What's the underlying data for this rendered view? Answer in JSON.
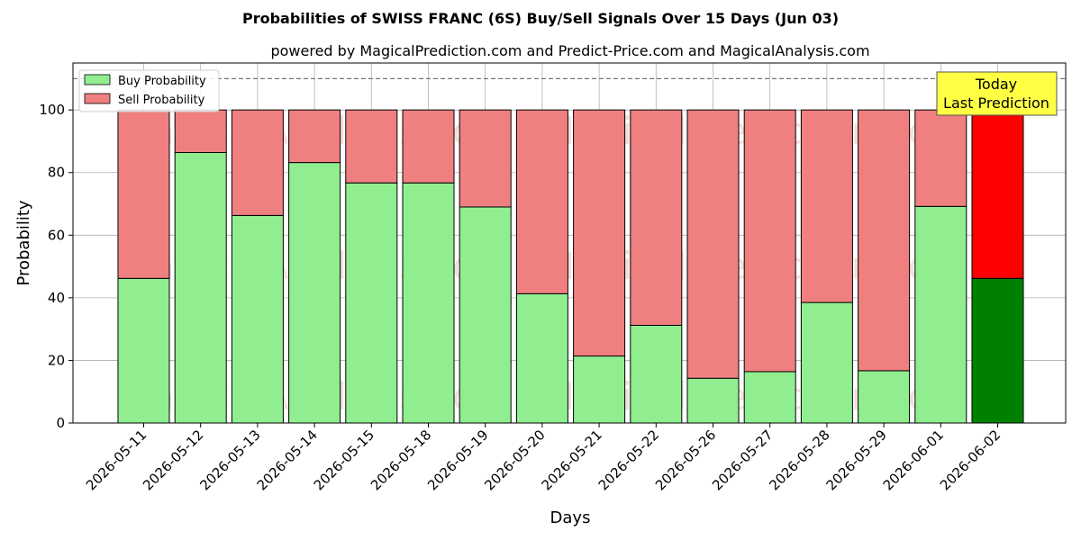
{
  "chart_data": {
    "type": "bar",
    "title": "Probabilities of SWISS FRANC (6S) Buy/Sell Signals Over 15 Days (Jun 03)",
    "subtitle": "powered by MagicalPrediction.com and Predict-Price.com and MagicalAnalysis.com",
    "xlabel": "Days",
    "ylabel": "Probability",
    "ylim": [
      0,
      115
    ],
    "yticks": [
      0,
      20,
      40,
      60,
      80,
      100
    ],
    "reference_line": 110,
    "grid": true,
    "legend_position": "top-left",
    "stacked": true,
    "categories": [
      "2026-05-11",
      "2026-05-12",
      "2026-05-13",
      "2026-05-14",
      "2026-05-15",
      "2026-05-18",
      "2026-05-19",
      "2026-05-20",
      "2026-05-21",
      "2026-05-22",
      "2026-05-26",
      "2026-05-27",
      "2026-05-28",
      "2026-05-29",
      "2026-06-01",
      "2026-06-02"
    ],
    "series": [
      {
        "name": "Buy Probability",
        "color": "#90ee90",
        "highlight_color": "#008000",
        "values": [
          46.2,
          86.4,
          66.3,
          83.2,
          76.7,
          76.7,
          69.0,
          41.3,
          21.4,
          31.2,
          14.3,
          16.4,
          38.5,
          16.7,
          69.2,
          46.2
        ]
      },
      {
        "name": "Sell Probability",
        "color": "#f08080",
        "highlight_color": "#ff0000",
        "values": [
          53.8,
          13.6,
          33.7,
          16.8,
          23.3,
          23.3,
          31.0,
          58.7,
          78.6,
          68.8,
          85.7,
          83.6,
          61.5,
          83.3,
          30.8,
          53.8
        ]
      }
    ],
    "highlight_index": 15,
    "annotation": {
      "line1": "Today",
      "line2": "Last Prediction",
      "background": "#ffff44"
    },
    "watermarks": [
      "MagicalAnalysis.com",
      "MagicalPrediction.com"
    ]
  }
}
